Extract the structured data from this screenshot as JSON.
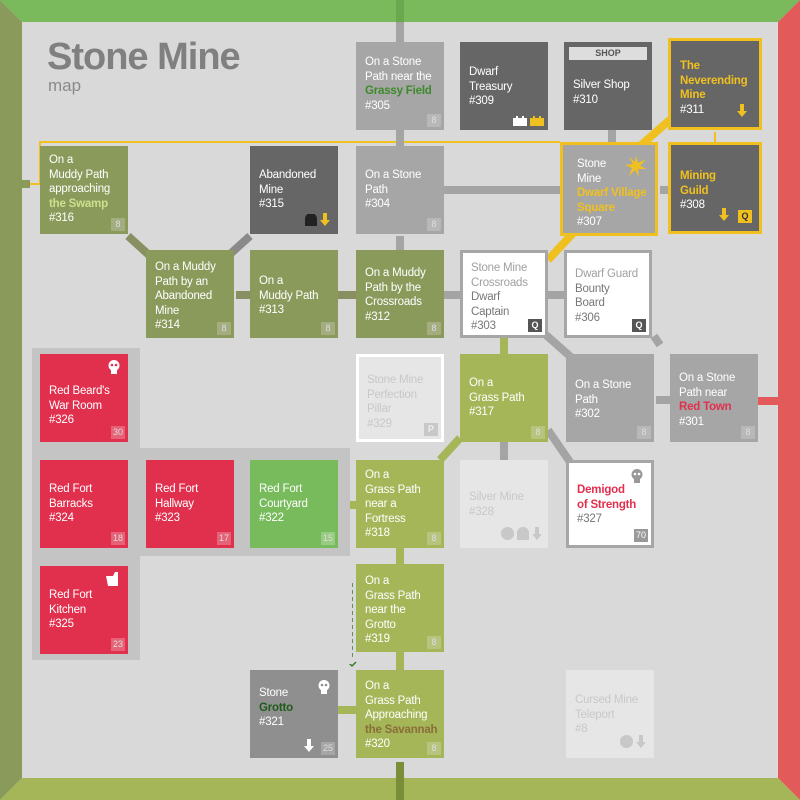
{
  "header": {
    "title": "Stone Mine",
    "subtitle": "map"
  },
  "colors": {
    "gray": "#a6a6a6",
    "dark": "#666666",
    "green": "#8a9a5b",
    "lime": "#a4b657",
    "red": "#e0304e",
    "bright_green": "#78bb5c",
    "pale": "#e6e6e6",
    "gold": "#f0c020",
    "frame_top": "#7aba5c",
    "frame_right": "#e35a5a",
    "frame_left": "#8a9a5b"
  },
  "rooms": {
    "r305": {
      "line1": "On a Stone",
      "line2": "Path near the",
      "hl": "Grassy Field",
      "num": "#305",
      "badge": "8"
    },
    "r309": {
      "text": "Dwarf\nTreasury\n#309"
    },
    "r310": {
      "shop": "SHOP",
      "text": "Silver Shop\n#310"
    },
    "r311": {
      "hl": "The\nNeverending\nMine",
      "num": "#311"
    },
    "r316": {
      "text": "On a\nMuddy Path\napproaching",
      "hl": "the Swamp",
      "num": "#316",
      "badge": "8"
    },
    "r315": {
      "text": "Abandoned\nMine\n#315"
    },
    "r304": {
      "text": "On a Stone\nPath\n#304",
      "badge": "8"
    },
    "r307": {
      "text": "Stone\nMine",
      "hl": "Dwarf Village\nSquare",
      "num": "#307"
    },
    "r308": {
      "hl": "Mining\nGuild",
      "num": "#308",
      "badge": "Q"
    },
    "r314": {
      "text": "On a Muddy\nPath by an\nAbandoned\nMine\n#314",
      "badge": "8"
    },
    "r313": {
      "text": "On a\nMuddy Path\n#313",
      "badge": "8"
    },
    "r312": {
      "text": "On a Muddy\nPath by the\nCrossroads\n#312",
      "badge": "8"
    },
    "r303": {
      "text": "Stone Mine\nCrossroads",
      "text2": "Dwarf\nCaptain\n#303",
      "badge": "Q"
    },
    "r306": {
      "text": "Dwarf Guard",
      "text2": "Bounty\nBoard\n#306",
      "badge": "Q"
    },
    "r326": {
      "text": "Red Beard's\nWar Room\n#326",
      "badge": "30"
    },
    "r329": {
      "text": "Stone Mine\nPerfection\nPillar\n#329",
      "badge": "P"
    },
    "r317": {
      "text": "On a\nGrass Path\n#317",
      "badge": "8"
    },
    "r302": {
      "text": "On a Stone\nPath\n#302",
      "badge": "8"
    },
    "r301": {
      "text": "On a Stone\nPath near",
      "hl": "Red Town",
      "num": "#301",
      "badge": "8"
    },
    "r324": {
      "text": "Red Fort\nBarracks\n#324",
      "badge": "18"
    },
    "r323": {
      "text": "Red Fort\nHallway\n#323",
      "badge": "17"
    },
    "r322": {
      "text": "Red Fort\nCourtyard\n#322",
      "badge": "15"
    },
    "r318": {
      "text": "On a\nGrass Path\nnear a\nFortress\n#318",
      "badge": "8"
    },
    "r328": {
      "text": "Silver Mine\n#328"
    },
    "r327": {
      "hl": "Demigod\nof Strength",
      "num": "#327",
      "badge": "70"
    },
    "r325": {
      "text": "Red Fort\nKitchen\n#325",
      "badge": "23"
    },
    "r319": {
      "text": "On a\nGrass Path\nnear the\nGrotto\n#319",
      "badge": "8"
    },
    "r321": {
      "text": "Stone",
      "hl": "Grotto",
      "num": "#321",
      "badge": "25"
    },
    "r320": {
      "text": "On a\nGrass Path\nApproaching",
      "hl": "the Savannah",
      "num": "#320",
      "badge": "8"
    },
    "r8": {
      "text": "Cursed Mine\nTeleport\n#8"
    }
  }
}
